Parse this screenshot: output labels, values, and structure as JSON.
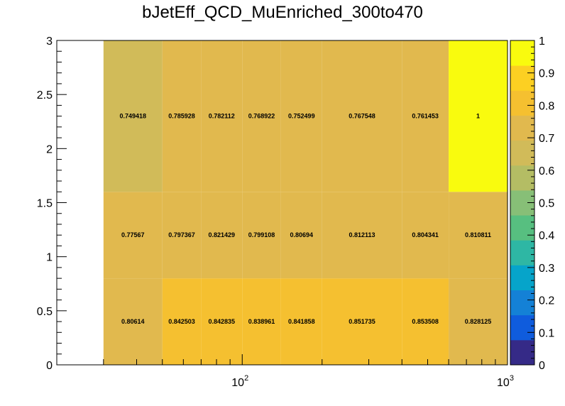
{
  "chart_data": {
    "type": "heatmap",
    "title": "bJetEff_QCD_MuEnriched_300to470",
    "xlabel": "",
    "ylabel": "",
    "x_scale": "log",
    "xlim": [
      20,
      1000
    ],
    "ylim": [
      0,
      3
    ],
    "zlim": [
      0,
      1
    ],
    "x_bin_edges": [
      30,
      50,
      70,
      100,
      140,
      200,
      400,
      600,
      1000
    ],
    "y_bin_edges": [
      0,
      0.8,
      1.6,
      3
    ],
    "y_ticks": [
      "0",
      "0.5",
      "1",
      "1.5",
      "2",
      "2.5",
      "3"
    ],
    "x_ticks": [
      {
        "base": "10",
        "exp": "2",
        "value": 100
      },
      {
        "base": "10",
        "exp": "3",
        "value": 1000
      }
    ],
    "z_ticks": [
      "0",
      "0.1",
      "0.2",
      "0.3",
      "0.4",
      "0.5",
      "0.6",
      "0.7",
      "0.8",
      "0.9",
      "1"
    ],
    "values": [
      [
        0.80614,
        0.842503,
        0.842835,
        0.838961,
        0.841858,
        0.851735,
        0.853508,
        0.828125
      ],
      [
        0.77567,
        0.797367,
        0.821429,
        0.799108,
        0.80694,
        0.812113,
        0.804341,
        0.810811
      ],
      [
        0.749418,
        0.785928,
        0.782112,
        0.768922,
        0.752499,
        0.767548,
        0.761453,
        1
      ]
    ],
    "labels": [
      [
        "0.80614",
        "0.842503",
        "0.842835",
        "0.838961",
        "0.841858",
        "0.851735",
        "0.853508",
        "0.828125"
      ],
      [
        "0.77567",
        "0.797367",
        "0.821429",
        "0.799108",
        "0.80694",
        "0.812113",
        "0.804341",
        "0.810811"
      ],
      [
        "0.749418",
        "0.785928",
        "0.782112",
        "0.768922",
        "0.752499",
        "0.767548",
        "0.761453",
        "1"
      ]
    ],
    "palette": [
      "#352a87",
      "#0f5cdd",
      "#1481d6",
      "#06a4ca",
      "#2eb7a4",
      "#57bf80",
      "#87bf77",
      "#b4bd64",
      "#d1bb59",
      "#e1b94e",
      "#f5c030",
      "#fcd022",
      "#f9fb0e"
    ]
  }
}
